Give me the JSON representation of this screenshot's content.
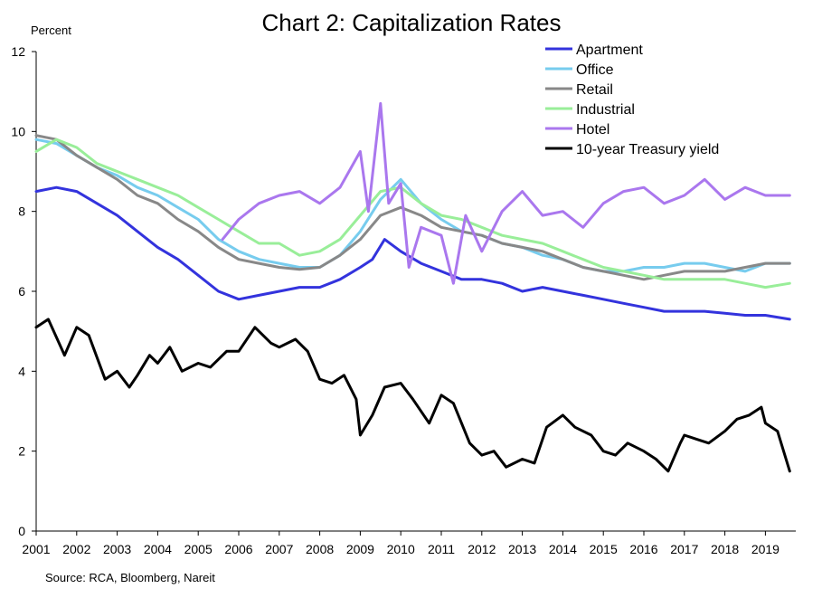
{
  "chart_data": {
    "type": "line",
    "title": "Chart 2: Capitalization Rates",
    "ylabel": "Percent",
    "source": "Source: RCA, Bloomberg, Nareit",
    "ylim": [
      0,
      12
    ],
    "yticks": [
      "0",
      "2",
      "4",
      "6",
      "8",
      "10",
      "12"
    ],
    "xlim": [
      2001,
      2019.75
    ],
    "xticks": [
      "2001",
      "2002",
      "2003",
      "2004",
      "2005",
      "2006",
      "2007",
      "2008",
      "2009",
      "2010",
      "2011",
      "2012",
      "2013",
      "2014",
      "2015",
      "2016",
      "2017",
      "2018",
      "2019"
    ],
    "grid": false,
    "legend_position": "top-right",
    "series": [
      {
        "name": "Apartment",
        "color": "#3333dd",
        "x": [
          2001,
          2001.5,
          2002,
          2002.5,
          2003,
          2003.5,
          2004,
          2004.5,
          2005,
          2005.5,
          2006,
          2006.5,
          2007,
          2007.5,
          2008,
          2008.5,
          2009,
          2009.3,
          2009.6,
          2010,
          2010.5,
          2011,
          2011.5,
          2012,
          2012.5,
          2013,
          2013.5,
          2014,
          2014.5,
          2015,
          2015.5,
          2016,
          2016.5,
          2017,
          2017.5,
          2018,
          2018.5,
          2019,
          2019.6
        ],
        "values": [
          8.5,
          8.6,
          8.5,
          8.2,
          7.9,
          7.5,
          7.1,
          6.8,
          6.4,
          6.0,
          5.8,
          5.9,
          6.0,
          6.1,
          6.1,
          6.3,
          6.6,
          6.8,
          7.3,
          7.0,
          6.7,
          6.5,
          6.3,
          6.3,
          6.2,
          6.0,
          6.1,
          6.0,
          5.9,
          5.8,
          5.7,
          5.6,
          5.5,
          5.5,
          5.5,
          5.45,
          5.4,
          5.4,
          5.3
        ]
      },
      {
        "name": "Office",
        "color": "#77ccee",
        "x": [
          2001,
          2001.5,
          2002,
          2002.5,
          2003,
          2003.5,
          2004,
          2004.5,
          2005,
          2005.5,
          2006,
          2006.5,
          2007,
          2007.5,
          2008,
          2008.5,
          2009,
          2009.5,
          2010,
          2010.5,
          2011,
          2011.5,
          2012,
          2012.5,
          2013,
          2013.5,
          2014,
          2014.5,
          2015,
          2015.5,
          2016,
          2016.5,
          2017,
          2017.5,
          2018,
          2018.5,
          2019,
          2019.6
        ],
        "values": [
          9.8,
          9.7,
          9.4,
          9.1,
          8.9,
          8.6,
          8.4,
          8.1,
          7.8,
          7.3,
          7.0,
          6.8,
          6.7,
          6.6,
          6.6,
          6.9,
          7.5,
          8.3,
          8.8,
          8.2,
          7.8,
          7.5,
          7.4,
          7.2,
          7.1,
          6.9,
          6.8,
          6.6,
          6.5,
          6.5,
          6.6,
          6.6,
          6.7,
          6.7,
          6.6,
          6.5,
          6.7,
          6.7
        ]
      },
      {
        "name": "Retail",
        "color": "#888888",
        "x": [
          2001,
          2001.5,
          2002,
          2002.5,
          2003,
          2003.5,
          2004,
          2004.5,
          2005,
          2005.5,
          2006,
          2006.5,
          2007,
          2007.5,
          2008,
          2008.5,
          2009,
          2009.5,
          2010,
          2010.5,
          2011,
          2011.5,
          2012,
          2012.5,
          2013,
          2013.5,
          2014,
          2014.5,
          2015,
          2015.5,
          2016,
          2016.5,
          2017,
          2017.5,
          2018,
          2018.5,
          2019,
          2019.6
        ],
        "values": [
          9.9,
          9.8,
          9.4,
          9.1,
          8.8,
          8.4,
          8.2,
          7.8,
          7.5,
          7.1,
          6.8,
          6.7,
          6.6,
          6.55,
          6.6,
          6.9,
          7.3,
          7.9,
          8.1,
          7.9,
          7.6,
          7.5,
          7.4,
          7.2,
          7.1,
          7.0,
          6.8,
          6.6,
          6.5,
          6.4,
          6.3,
          6.4,
          6.5,
          6.5,
          6.5,
          6.6,
          6.7,
          6.7
        ]
      },
      {
        "name": "Industrial",
        "color": "#99ee99",
        "x": [
          2001,
          2001.5,
          2002,
          2002.5,
          2003,
          2003.5,
          2004,
          2004.5,
          2005,
          2005.5,
          2006,
          2006.5,
          2007,
          2007.5,
          2008,
          2008.5,
          2009,
          2009.5,
          2010,
          2010.5,
          2011,
          2011.5,
          2012,
          2012.5,
          2013,
          2013.5,
          2014,
          2014.5,
          2015,
          2015.5,
          2016,
          2016.5,
          2017,
          2017.5,
          2018,
          2018.5,
          2019,
          2019.6
        ],
        "values": [
          9.5,
          9.8,
          9.6,
          9.2,
          9.0,
          8.8,
          8.6,
          8.4,
          8.1,
          7.8,
          7.5,
          7.2,
          7.2,
          6.9,
          7.0,
          7.3,
          7.9,
          8.5,
          8.6,
          8.2,
          7.9,
          7.8,
          7.6,
          7.4,
          7.3,
          7.2,
          7.0,
          6.8,
          6.6,
          6.5,
          6.4,
          6.3,
          6.3,
          6.3,
          6.3,
          6.2,
          6.1,
          6.2
        ]
      },
      {
        "name": "Hotel",
        "color": "#aa77ee",
        "x": [
          2005.6,
          2006,
          2006.5,
          2007,
          2007.5,
          2008,
          2008.5,
          2009,
          2009.2,
          2009.5,
          2009.7,
          2010,
          2010.2,
          2010.5,
          2011,
          2011.3,
          2011.6,
          2012,
          2012.5,
          2013,
          2013.5,
          2014,
          2014.5,
          2015,
          2015.5,
          2016,
          2016.5,
          2017,
          2017.5,
          2018,
          2018.5,
          2019,
          2019.6
        ],
        "values": [
          7.3,
          7.8,
          8.2,
          8.4,
          8.5,
          8.2,
          8.6,
          9.5,
          8.0,
          10.7,
          8.2,
          8.7,
          6.6,
          7.6,
          7.4,
          6.2,
          7.9,
          7.0,
          8.0,
          8.5,
          7.9,
          8.0,
          7.6,
          8.2,
          8.5,
          8.6,
          8.2,
          8.4,
          8.8,
          8.3,
          8.6,
          8.4,
          8.4
        ]
      },
      {
        "name": "10-year Treasury yield",
        "color": "#000000",
        "x": [
          2001,
          2001.3,
          2001.7,
          2002,
          2002.3,
          2002.7,
          2003,
          2003.3,
          2003.5,
          2003.8,
          2004,
          2004.3,
          2004.6,
          2005,
          2005.3,
          2005.7,
          2006,
          2006.4,
          2006.8,
          2007,
          2007.4,
          2007.7,
          2008,
          2008.3,
          2008.6,
          2008.9,
          2009,
          2009.3,
          2009.6,
          2010,
          2010.3,
          2010.7,
          2011,
          2011.3,
          2011.7,
          2012,
          2012.3,
          2012.6,
          2013,
          2013.3,
          2013.6,
          2014,
          2014.3,
          2014.7,
          2015,
          2015.3,
          2015.6,
          2016,
          2016.3,
          2016.6,
          2016.9,
          2017,
          2017.3,
          2017.6,
          2018,
          2018.3,
          2018.6,
          2018.9,
          2019,
          2019.3,
          2019.6
        ],
        "values": [
          5.1,
          5.3,
          4.4,
          5.1,
          4.9,
          3.8,
          4.0,
          3.6,
          3.9,
          4.4,
          4.2,
          4.6,
          4.0,
          4.2,
          4.1,
          4.5,
          4.5,
          5.1,
          4.7,
          4.6,
          4.8,
          4.5,
          3.8,
          3.7,
          3.9,
          3.3,
          2.4,
          2.9,
          3.6,
          3.7,
          3.3,
          2.7,
          3.4,
          3.2,
          2.2,
          1.9,
          2.0,
          1.6,
          1.8,
          1.7,
          2.6,
          2.9,
          2.6,
          2.4,
          2.0,
          1.9,
          2.2,
          2.0,
          1.8,
          1.5,
          2.2,
          2.4,
          2.3,
          2.2,
          2.5,
          2.8,
          2.9,
          3.1,
          2.7,
          2.5,
          1.5
        ]
      }
    ]
  }
}
